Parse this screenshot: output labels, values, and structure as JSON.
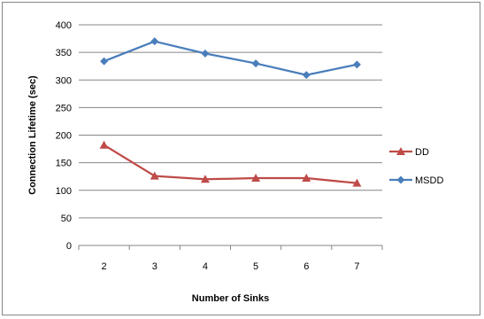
{
  "chart_data": {
    "type": "line",
    "title": "",
    "xlabel": "Number of Sinks",
    "ylabel": "Connection Lifetime (sec)",
    "x": [
      2,
      3,
      4,
      5,
      6,
      7
    ],
    "ylim": [
      0,
      400
    ],
    "yticks": [
      0,
      50,
      100,
      150,
      200,
      250,
      300,
      350,
      400
    ],
    "grid": "horizontal",
    "legend_position": "right",
    "series": [
      {
        "name": "DD",
        "values": [
          182,
          126,
          120,
          122,
          122,
          113
        ],
        "color": "#BE4B48",
        "marker": "triangle"
      },
      {
        "name": "MSDD",
        "values": [
          334,
          370,
          348,
          330,
          309,
          328
        ],
        "color": "#4A7EBB",
        "marker": "diamond"
      }
    ]
  }
}
